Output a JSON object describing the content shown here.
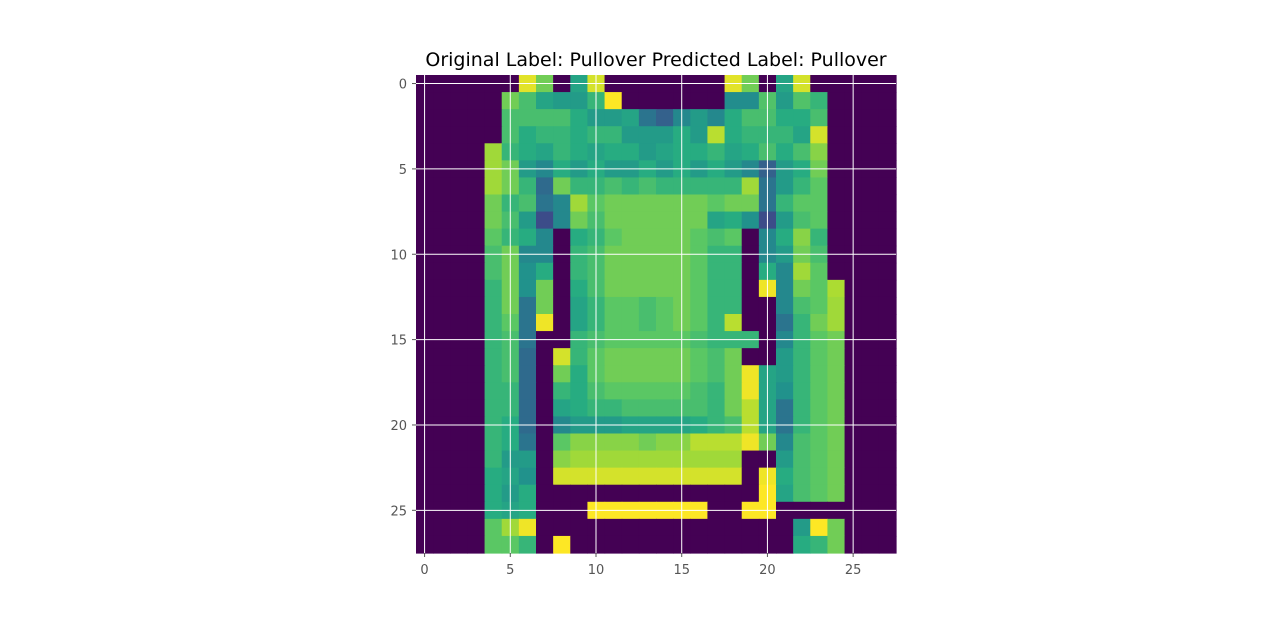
{
  "chart_data": {
    "type": "heatmap",
    "title": "Original Label: Pullover  Predicted Label: Pullover",
    "xlabel": "",
    "ylabel": "",
    "colormap": "viridis",
    "value_range": [
      0,
      255
    ],
    "grid": true,
    "x_range": [
      -0.5,
      27.5
    ],
    "y_range": [
      27.5,
      -0.5
    ],
    "xticks": [
      0,
      5,
      10,
      15,
      20,
      25
    ],
    "yticks": [
      0,
      5,
      10,
      15,
      20,
      25
    ],
    "xtick_labels": [
      "0",
      "5",
      "10",
      "15",
      "20",
      "25"
    ],
    "ytick_labels": [
      "0",
      "5",
      "10",
      "15",
      "20",
      "25"
    ],
    "rows": 28,
    "cols": 28,
    "values": [
      [
        0,
        0,
        0,
        0,
        0,
        0,
        245,
        200,
        0,
        150,
        240,
        0,
        0,
        0,
        0,
        0,
        0,
        0,
        245,
        200,
        0,
        150,
        240,
        0,
        0,
        0,
        0,
        0
      ],
      [
        0,
        0,
        0,
        0,
        0,
        200,
        180,
        150,
        140,
        140,
        170,
        255,
        0,
        0,
        0,
        0,
        0,
        0,
        125,
        125,
        185,
        140,
        185,
        170,
        0,
        0,
        0,
        0
      ],
      [
        0,
        0,
        0,
        0,
        0,
        180,
        180,
        180,
        180,
        160,
        140,
        140,
        150,
        100,
        80,
        120,
        140,
        120,
        160,
        180,
        180,
        160,
        160,
        180,
        0,
        0,
        0,
        0
      ],
      [
        0,
        0,
        0,
        0,
        0,
        180,
        160,
        170,
        170,
        160,
        170,
        170,
        140,
        140,
        140,
        160,
        140,
        230,
        160,
        170,
        170,
        170,
        150,
        240,
        0,
        0,
        0,
        0
      ],
      [
        0,
        0,
        0,
        0,
        220,
        170,
        160,
        150,
        170,
        160,
        150,
        160,
        160,
        140,
        150,
        160,
        160,
        170,
        150,
        160,
        180,
        160,
        180,
        210,
        0,
        0,
        0,
        0
      ],
      [
        0,
        0,
        0,
        0,
        220,
        200,
        140,
        120,
        160,
        140,
        160,
        140,
        140,
        160,
        140,
        160,
        140,
        160,
        140,
        120,
        80,
        140,
        160,
        200,
        0,
        0,
        0,
        0
      ],
      [
        0,
        0,
        0,
        0,
        220,
        200,
        170,
        90,
        200,
        170,
        170,
        180,
        170,
        180,
        170,
        170,
        170,
        170,
        170,
        220,
        100,
        140,
        170,
        190,
        0,
        0,
        0,
        0
      ],
      [
        0,
        0,
        0,
        0,
        200,
        170,
        180,
        100,
        120,
        220,
        190,
        200,
        200,
        200,
        200,
        200,
        200,
        190,
        200,
        200,
        100,
        170,
        190,
        190,
        0,
        0,
        0,
        0
      ],
      [
        0,
        0,
        0,
        0,
        200,
        180,
        140,
        60,
        120,
        200,
        180,
        200,
        200,
        200,
        200,
        200,
        200,
        150,
        160,
        130,
        60,
        140,
        180,
        190,
        0,
        0,
        0,
        0
      ],
      [
        0,
        0,
        0,
        0,
        190,
        170,
        160,
        120,
        0,
        160,
        170,
        190,
        200,
        200,
        200,
        200,
        190,
        180,
        190,
        0,
        120,
        160,
        210,
        170,
        0,
        0,
        0,
        0
      ],
      [
        0,
        0,
        0,
        0,
        180,
        200,
        120,
        120,
        0,
        170,
        180,
        200,
        200,
        200,
        200,
        200,
        190,
        170,
        170,
        0,
        120,
        140,
        200,
        180,
        0,
        0,
        0,
        0
      ],
      [
        0,
        0,
        0,
        0,
        180,
        200,
        130,
        160,
        0,
        170,
        180,
        200,
        200,
        200,
        200,
        200,
        190,
        170,
        170,
        0,
        160,
        120,
        220,
        190,
        0,
        0,
        0,
        0
      ],
      [
        0,
        0,
        0,
        0,
        170,
        200,
        130,
        200,
        0,
        160,
        180,
        200,
        200,
        200,
        200,
        200,
        190,
        170,
        170,
        0,
        250,
        120,
        200,
        190,
        225,
        0,
        0,
        0
      ],
      [
        0,
        0,
        0,
        0,
        170,
        200,
        100,
        200,
        0,
        150,
        170,
        190,
        190,
        180,
        190,
        200,
        190,
        170,
        170,
        0,
        0,
        120,
        180,
        190,
        220,
        0,
        0,
        0
      ],
      [
        0,
        0,
        0,
        0,
        170,
        190,
        100,
        250,
        0,
        150,
        170,
        190,
        190,
        180,
        190,
        200,
        190,
        170,
        230,
        0,
        0,
        100,
        170,
        200,
        220,
        0,
        0,
        0
      ],
      [
        0,
        0,
        0,
        0,
        170,
        180,
        100,
        0,
        0,
        170,
        180,
        190,
        190,
        190,
        190,
        190,
        180,
        170,
        170,
        170,
        0,
        120,
        170,
        190,
        200,
        0,
        0,
        0
      ],
      [
        0,
        0,
        0,
        0,
        170,
        180,
        90,
        0,
        240,
        170,
        190,
        200,
        200,
        200,
        200,
        200,
        190,
        180,
        200,
        0,
        0,
        140,
        170,
        190,
        200,
        0,
        0,
        0
      ],
      [
        0,
        0,
        0,
        0,
        170,
        180,
        90,
        0,
        200,
        160,
        190,
        200,
        200,
        200,
        200,
        200,
        190,
        180,
        200,
        250,
        150,
        140,
        170,
        190,
        200,
        0,
        0,
        0
      ],
      [
        0,
        0,
        0,
        0,
        170,
        170,
        90,
        0,
        170,
        160,
        180,
        190,
        190,
        190,
        190,
        190,
        180,
        170,
        200,
        250,
        150,
        130,
        170,
        190,
        200,
        0,
        0,
        0
      ],
      [
        0,
        0,
        0,
        0,
        170,
        170,
        90,
        0,
        150,
        160,
        170,
        170,
        180,
        180,
        180,
        180,
        180,
        170,
        200,
        230,
        150,
        100,
        170,
        190,
        200,
        0,
        0,
        0
      ],
      [
        0,
        0,
        0,
        0,
        170,
        160,
        90,
        0,
        120,
        140,
        140,
        140,
        150,
        150,
        150,
        150,
        160,
        170,
        180,
        230,
        150,
        100,
        170,
        190,
        200,
        0,
        0,
        0
      ],
      [
        0,
        0,
        0,
        0,
        170,
        160,
        100,
        0,
        190,
        210,
        210,
        210,
        210,
        200,
        210,
        210,
        230,
        230,
        230,
        250,
        200,
        120,
        180,
        190,
        200,
        0,
        0,
        0
      ],
      [
        0,
        0,
        0,
        0,
        170,
        140,
        140,
        0,
        210,
        220,
        220,
        220,
        220,
        220,
        220,
        220,
        220,
        220,
        220,
        0,
        0,
        140,
        180,
        190,
        200,
        0,
        0,
        0
      ],
      [
        0,
        0,
        0,
        0,
        160,
        150,
        130,
        0,
        240,
        240,
        240,
        240,
        240,
        240,
        240,
        240,
        240,
        240,
        240,
        0,
        250,
        160,
        180,
        190,
        200,
        0,
        0,
        0
      ],
      [
        0,
        0,
        0,
        0,
        160,
        140,
        160,
        0,
        0,
        0,
        0,
        0,
        0,
        0,
        0,
        0,
        0,
        0,
        0,
        0,
        255,
        150,
        180,
        190,
        200,
        0,
        0,
        0
      ],
      [
        0,
        0,
        0,
        0,
        160,
        150,
        160,
        0,
        0,
        0,
        255,
        255,
        255,
        255,
        255,
        255,
        255,
        0,
        0,
        255,
        255,
        0,
        0,
        0,
        0,
        0,
        0,
        0
      ],
      [
        0,
        0,
        0,
        0,
        190,
        220,
        250,
        0,
        0,
        0,
        0,
        0,
        0,
        0,
        0,
        0,
        0,
        0,
        0,
        0,
        0,
        0,
        140,
        255,
        200,
        0,
        0,
        0
      ],
      [
        0,
        0,
        0,
        0,
        190,
        190,
        170,
        0,
        255,
        0,
        0,
        0,
        0,
        0,
        0,
        0,
        0,
        0,
        0,
        0,
        0,
        0,
        160,
        170,
        200,
        0,
        0,
        0
      ]
    ]
  }
}
